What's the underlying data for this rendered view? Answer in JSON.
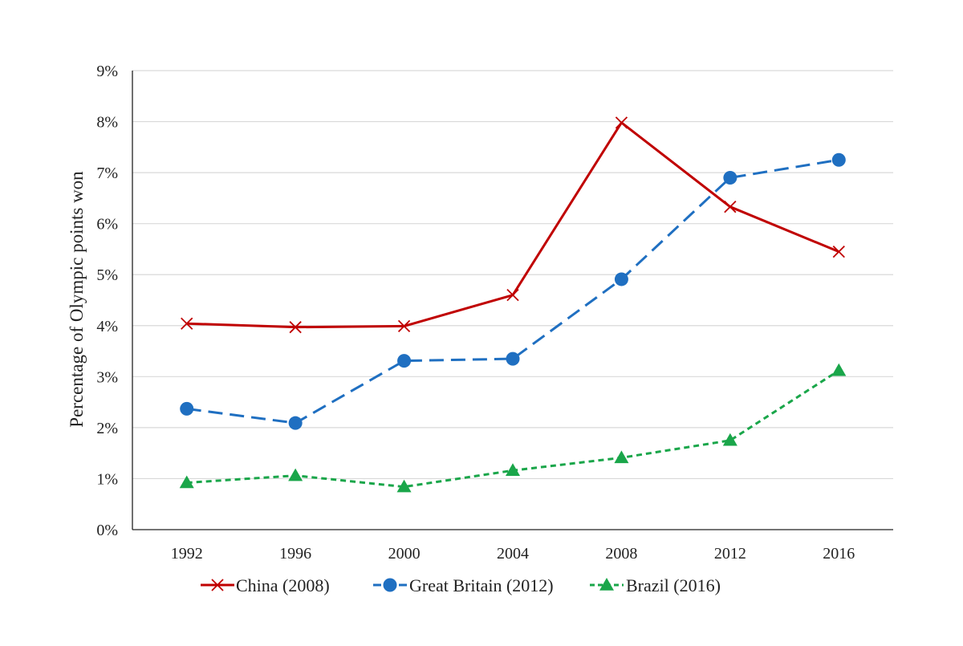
{
  "chart_data": {
    "type": "line",
    "title": "",
    "xlabel": "",
    "ylabel": "Percentage of Olympic points won",
    "categories": [
      "1992",
      "1996",
      "2000",
      "2004",
      "2008",
      "2012",
      "2016"
    ],
    "ylim": [
      0,
      9
    ],
    "y_ticks": [
      "0%",
      "1%",
      "2%",
      "3%",
      "4%",
      "5%",
      "6%",
      "7%",
      "8%",
      "9%"
    ],
    "y_unit": "%",
    "grid": "horizontal",
    "legend_position": "bottom",
    "series": [
      {
        "name": "China (2008)",
        "values": [
          4.04,
          3.97,
          3.99,
          4.6,
          7.98,
          6.33,
          5.45
        ],
        "color": "#c00000",
        "line_style": "solid",
        "marker": "x"
      },
      {
        "name": "Great Britain (2012)",
        "values": [
          2.37,
          2.09,
          3.31,
          3.35,
          4.91,
          6.9,
          7.25
        ],
        "color": "#1f6fc1",
        "line_style": "long-dash",
        "marker": "circle"
      },
      {
        "name": "Brazil (2016)",
        "values": [
          0.92,
          1.06,
          0.84,
          1.16,
          1.41,
          1.75,
          3.12
        ],
        "color": "#1aa64a",
        "line_style": "short-dash",
        "marker": "triangle"
      }
    ]
  }
}
